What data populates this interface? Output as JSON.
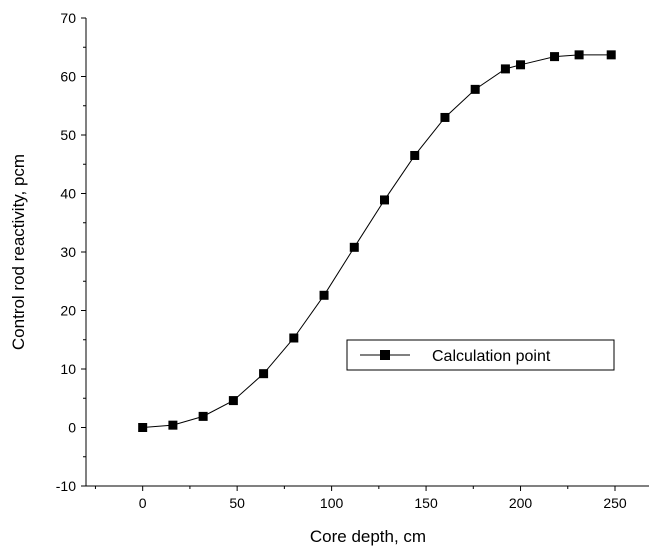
{
  "chart_data": {
    "type": "line",
    "xlabel": "Core depth, cm",
    "ylabel": "Control rod reactivity, pcm",
    "xlim": [
      -30,
      268
    ],
    "ylim": [
      -10,
      70
    ],
    "xticks": [
      0,
      50,
      100,
      150,
      200,
      250
    ],
    "yticks": [
      -10,
      0,
      10,
      20,
      30,
      40,
      50,
      60,
      70
    ],
    "grid": false,
    "legend": "center-right",
    "series": [
      {
        "name": "Calculation point",
        "color": "#000000",
        "marker": "square",
        "x": [
          0,
          16,
          32,
          48,
          64,
          80,
          96,
          112,
          128,
          144,
          160,
          176,
          192,
          200,
          218,
          231,
          248
        ],
        "y": [
          0,
          0.4,
          1.9,
          4.6,
          9.2,
          15.3,
          22.6,
          30.8,
          38.9,
          46.5,
          53.0,
          57.8,
          61.3,
          62.0,
          63.4,
          63.7,
          63.7
        ]
      }
    ]
  }
}
